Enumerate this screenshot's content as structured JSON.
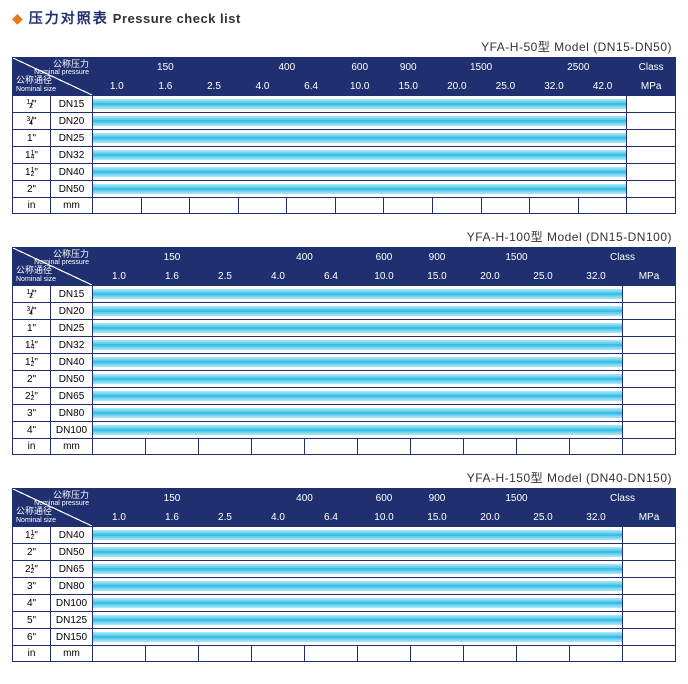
{
  "page_title_cn": "压力对照表",
  "page_title_en": "Pressure check list",
  "corner": {
    "top_cn": "公称压力",
    "top_en": "Nominal pressure",
    "left_cn": "公称通径",
    "left_en": "Nominal size"
  },
  "footer": {
    "in": "in",
    "mm": "mm"
  },
  "colors": {
    "header_bg": "#1f2f6f",
    "header_text": "#ffffff",
    "border": "#1f2f6f",
    "bar_light": "#b2e9f7",
    "bar_mid": "#45c5ea",
    "bar_dark": "#16a9d8",
    "diamond": "#e67817"
  },
  "tables": [
    {
      "model": "YFA-H-50型  Model (DN15-DN50)",
      "class_groups": [
        "",
        "150",
        "",
        "400",
        "600",
        "900",
        "",
        "1500",
        "",
        "2500",
        "Class"
      ],
      "mpa_row": [
        "1.0",
        "1.6",
        "2.5",
        "4.0",
        "6.4",
        "10.0",
        "15.0",
        "20.0",
        "25.0",
        "32.0",
        "42.0",
        "MPa"
      ],
      "cols": 12,
      "corner_colspan": 2,
      "size_in_w": 38,
      "size_mm_w": 42,
      "rows": [
        {
          "in": "1/2\"",
          "mm": "DN15",
          "span": 11
        },
        {
          "in": "3/4\"",
          "mm": "DN20",
          "span": 11
        },
        {
          "in": "1\"",
          "mm": "DN25",
          "span": 11
        },
        {
          "in": "1¼\"",
          "mm": "DN32",
          "span": 11
        },
        {
          "in": "1½\"",
          "mm": "DN40",
          "span": 11
        },
        {
          "in": "2\"",
          "mm": "DN50",
          "span": 11
        }
      ],
      "empty_after": 1
    },
    {
      "model": "YFA-H-100型  Model (DN15-DN100)",
      "class_groups": [
        "",
        "150",
        "",
        "400",
        "600",
        "900",
        "",
        "1500",
        "",
        "Class"
      ],
      "mpa_row": [
        "1.0",
        "1.6",
        "2.5",
        "4.0",
        "6.4",
        "10.0",
        "15.0",
        "20.0",
        "25.0",
        "32.0",
        "MPa"
      ],
      "cols": 11,
      "corner_colspan": 2,
      "size_in_w": 38,
      "size_mm_w": 42,
      "rows": [
        {
          "in": "1/2\"",
          "mm": "DN15",
          "span": 10
        },
        {
          "in": "3/4\"",
          "mm": "DN20",
          "span": 10
        },
        {
          "in": "1\"",
          "mm": "DN25",
          "span": 10
        },
        {
          "in": "1¼\"",
          "mm": "DN32",
          "span": 10
        },
        {
          "in": "1½\"",
          "mm": "DN40",
          "span": 10
        },
        {
          "in": "2\"",
          "mm": "DN50",
          "span": 10
        },
        {
          "in": "2½\"",
          "mm": "DN65",
          "span": 10
        },
        {
          "in": "3\"",
          "mm": "DN80",
          "span": 10
        },
        {
          "in": "4\"",
          "mm": "DN100",
          "span": 10
        }
      ],
      "empty_after": 1
    },
    {
      "model": "YFA-H-150型  Model (DN40-DN150)",
      "class_groups": [
        "",
        "150",
        "",
        "400",
        "600",
        "900",
        "",
        "1500",
        "",
        "Class"
      ],
      "mpa_row": [
        "1.0",
        "1.6",
        "2.5",
        "4.0",
        "6.4",
        "10.0",
        "15.0",
        "20.0",
        "25.0",
        "32.0",
        "MPa"
      ],
      "cols": 11,
      "corner_colspan": 2,
      "size_in_w": 38,
      "size_mm_w": 42,
      "rows": [
        {
          "in": "1½\"",
          "mm": "DN40",
          "span": 10
        },
        {
          "in": "2\"",
          "mm": "DN50",
          "span": 10
        },
        {
          "in": "2½\"",
          "mm": "DN65",
          "span": 10
        },
        {
          "in": "3\"",
          "mm": "DN80",
          "span": 10
        },
        {
          "in": "4\"",
          "mm": "DN100",
          "span": 10
        },
        {
          "in": "5\"",
          "mm": "DN125",
          "span": 10
        },
        {
          "in": "6\"",
          "mm": "DN150",
          "span": 10
        }
      ],
      "empty_after": 1
    }
  ]
}
